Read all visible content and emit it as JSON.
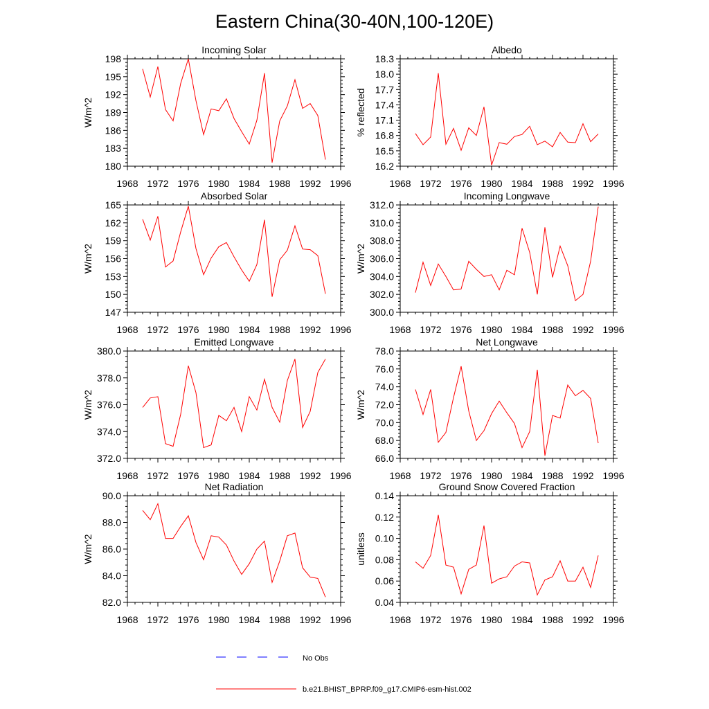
{
  "title": "Eastern China(30-40N,100-120E)",
  "colors": {
    "model": "#ff0000",
    "obs": "#0000ff",
    "axis": "#000000"
  },
  "legend": {
    "obs_label": "No Obs",
    "model_label": "b.e21.BHIST_BPRP.f09_g17.CMIP6-esm-hist.002"
  },
  "chart_data": [
    {
      "type": "line",
      "title": "Incoming Solar",
      "ylabel": "W/m^2",
      "xlabel": "",
      "xlim": [
        1968,
        1996
      ],
      "xticks": [
        1968,
        1972,
        1976,
        1980,
        1984,
        1988,
        1992,
        1996
      ],
      "ylim": [
        180,
        198
      ],
      "yticks": [
        180,
        183,
        186,
        189,
        192,
        195,
        198
      ],
      "ytick_labels": [
        "180",
        "183",
        "186",
        "189",
        "192",
        "195",
        "198"
      ],
      "series": [
        {
          "name": "b.e21.BHIST_BPRP.f09_g17.CMIP6-esm-hist.002",
          "x": [
            1970,
            1971,
            1972,
            1973,
            1974,
            1975,
            1976,
            1977,
            1978,
            1979,
            1980,
            1981,
            1982,
            1983,
            1984,
            1985,
            1986,
            1987,
            1988,
            1989,
            1990,
            1991,
            1992,
            1993,
            1994
          ],
          "y": [
            196.3,
            191.6,
            196.7,
            189.5,
            187.6,
            193.9,
            198.0,
            191.0,
            185.3,
            189.6,
            189.3,
            191.3,
            188.0,
            185.8,
            183.7,
            187.7,
            195.6,
            180.6,
            187.6,
            190.1,
            194.5,
            189.7,
            190.5,
            188.5,
            181.1
          ]
        }
      ]
    },
    {
      "type": "line",
      "title": "Albedo",
      "ylabel": "% reflected",
      "xlabel": "",
      "xlim": [
        1968,
        1996
      ],
      "xticks": [
        1968,
        1972,
        1976,
        1980,
        1984,
        1988,
        1992,
        1996
      ],
      "ylim": [
        16.2,
        18.3
      ],
      "yticks": [
        16.2,
        16.5,
        16.8,
        17.1,
        17.4,
        17.7,
        18.0,
        18.3
      ],
      "ytick_labels": [
        "16.2",
        "16.5",
        "16.8",
        "17.1",
        "17.4",
        "17.7",
        "18.0",
        "18.3"
      ],
      "series": [
        {
          "name": "b.e21.BHIST_BPRP.f09_g17.CMIP6-esm-hist.002",
          "x": [
            1970,
            1971,
            1972,
            1973,
            1974,
            1975,
            1976,
            1977,
            1978,
            1979,
            1980,
            1981,
            1982,
            1983,
            1984,
            1985,
            1986,
            1987,
            1988,
            1989,
            1990,
            1991,
            1992,
            1993,
            1994
          ],
          "y": [
            16.84,
            16.62,
            16.77,
            18.02,
            16.63,
            16.94,
            16.51,
            16.95,
            16.8,
            17.36,
            16.22,
            16.66,
            16.63,
            16.78,
            16.82,
            16.98,
            16.62,
            16.69,
            16.58,
            16.86,
            16.67,
            16.66,
            17.03,
            16.68,
            16.83
          ]
        }
      ]
    },
    {
      "type": "line",
      "title": "Absorbed Solar",
      "ylabel": "W/m^2",
      "xlabel": "",
      "xlim": [
        1968,
        1996
      ],
      "xticks": [
        1968,
        1972,
        1976,
        1980,
        1984,
        1988,
        1992,
        1996
      ],
      "ylim": [
        147,
        165
      ],
      "yticks": [
        147,
        150,
        153,
        156,
        159,
        162,
        165
      ],
      "ytick_labels": [
        "147",
        "150",
        "153",
        "156",
        "159",
        "162",
        "165"
      ],
      "series": [
        {
          "name": "b.e21.BHIST_BPRP.f09_g17.CMIP6-esm-hist.002",
          "x": [
            1970,
            1971,
            1972,
            1973,
            1974,
            1975,
            1976,
            1977,
            1978,
            1979,
            1980,
            1981,
            1982,
            1983,
            1984,
            1985,
            1986,
            1987,
            1988,
            1989,
            1990,
            1991,
            1992,
            1993,
            1994
          ],
          "y": [
            162.6,
            159.1,
            163.1,
            154.6,
            155.6,
            160.5,
            164.8,
            157.7,
            153.3,
            156.1,
            158.0,
            158.7,
            156.3,
            154.1,
            152.2,
            155.0,
            162.5,
            149.6,
            155.8,
            157.4,
            161.5,
            157.6,
            157.5,
            156.5,
            150.1
          ]
        }
      ]
    },
    {
      "type": "line",
      "title": "Incoming Longwave",
      "ylabel": "W/m^2",
      "xlabel": "",
      "xlim": [
        1968,
        1996
      ],
      "xticks": [
        1968,
        1972,
        1976,
        1980,
        1984,
        1988,
        1992,
        1996
      ],
      "ylim": [
        300,
        312
      ],
      "yticks": [
        300,
        302,
        304,
        306,
        308,
        310,
        312
      ],
      "ytick_labels": [
        "300.0",
        "302.0",
        "304.0",
        "306.0",
        "308.0",
        "310.0",
        "312.0"
      ],
      "series": [
        {
          "name": "b.e21.BHIST_BPRP.f09_g17.CMIP6-esm-hist.002",
          "x": [
            1970,
            1971,
            1972,
            1973,
            1974,
            1975,
            1976,
            1977,
            1978,
            1979,
            1980,
            1981,
            1982,
            1983,
            1984,
            1985,
            1986,
            1987,
            1988,
            1989,
            1990,
            1991,
            1992,
            1993,
            1994
          ],
          "y": [
            302.2,
            305.6,
            303.0,
            305.4,
            304.0,
            302.5,
            302.6,
            305.7,
            304.8,
            304.0,
            304.2,
            302.5,
            304.7,
            304.2,
            309.4,
            306.7,
            302.0,
            309.5,
            303.9,
            307.4,
            305.2,
            301.3,
            302.0,
            305.7,
            311.8
          ]
        }
      ]
    },
    {
      "type": "line",
      "title": "Emitted Longwave",
      "ylabel": "W/m^2",
      "xlabel": "",
      "xlim": [
        1968,
        1996
      ],
      "xticks": [
        1968,
        1972,
        1976,
        1980,
        1984,
        1988,
        1992,
        1996
      ],
      "ylim": [
        372,
        380
      ],
      "yticks": [
        372,
        374,
        376,
        378,
        380
      ],
      "ytick_labels": [
        "372.0",
        "374.0",
        "376.0",
        "378.0",
        "380.0"
      ],
      "series": [
        {
          "name": "b.e21.BHIST_BPRP.f09_g17.CMIP6-esm-hist.002",
          "x": [
            1970,
            1971,
            1972,
            1973,
            1974,
            1975,
            1976,
            1977,
            1978,
            1979,
            1980,
            1981,
            1982,
            1983,
            1984,
            1985,
            1986,
            1987,
            1988,
            1989,
            1990,
            1991,
            1992,
            1993,
            1994
          ],
          "y": [
            375.8,
            376.5,
            376.6,
            373.1,
            372.9,
            375.3,
            378.9,
            376.9,
            372.8,
            373.0,
            375.2,
            374.8,
            375.8,
            374.0,
            376.6,
            375.6,
            377.9,
            375.8,
            374.7,
            377.8,
            379.4,
            374.3,
            375.5,
            378.4,
            379.4
          ]
        }
      ]
    },
    {
      "type": "line",
      "title": "Net Longwave",
      "ylabel": "W/m^2",
      "xlabel": "",
      "xlim": [
        1968,
        1996
      ],
      "xticks": [
        1968,
        1972,
        1976,
        1980,
        1984,
        1988,
        1992,
        1996
      ],
      "ylim": [
        66,
        78
      ],
      "yticks": [
        66,
        68,
        70,
        72,
        74,
        76,
        78
      ],
      "ytick_labels": [
        "66.0",
        "68.0",
        "70.0",
        "72.0",
        "74.0",
        "76.0",
        "78.0"
      ],
      "series": [
        {
          "name": "b.e21.BHIST_BPRP.f09_g17.CMIP6-esm-hist.002",
          "x": [
            1970,
            1971,
            1972,
            1973,
            1974,
            1975,
            1976,
            1977,
            1978,
            1979,
            1980,
            1981,
            1982,
            1983,
            1984,
            1985,
            1986,
            1987,
            1988,
            1989,
            1990,
            1991,
            1992,
            1993,
            1994
          ],
          "y": [
            73.7,
            70.9,
            73.7,
            67.8,
            68.9,
            72.8,
            76.3,
            71.3,
            68.0,
            69.1,
            71.0,
            72.4,
            71.1,
            69.9,
            67.2,
            69.0,
            75.9,
            66.3,
            70.8,
            70.5,
            74.2,
            73.0,
            73.6,
            72.7,
            67.7
          ]
        }
      ]
    },
    {
      "type": "line",
      "title": "Net Radiation",
      "ylabel": "W/m^2",
      "xlabel": "",
      "xlim": [
        1968,
        1996
      ],
      "xticks": [
        1968,
        1972,
        1976,
        1980,
        1984,
        1988,
        1992,
        1996
      ],
      "ylim": [
        82,
        90
      ],
      "yticks": [
        82,
        84,
        86,
        88,
        90
      ],
      "ytick_labels": [
        "82.0",
        "84.0",
        "86.0",
        "88.0",
        "90.0"
      ],
      "series": [
        {
          "name": "b.e21.BHIST_BPRP.f09_g17.CMIP6-esm-hist.002",
          "x": [
            1970,
            1971,
            1972,
            1973,
            1974,
            1975,
            1976,
            1977,
            1978,
            1979,
            1980,
            1981,
            1982,
            1983,
            1984,
            1985,
            1986,
            1987,
            1988,
            1989,
            1990,
            1991,
            1992,
            1993,
            1994
          ],
          "y": [
            88.9,
            88.2,
            89.4,
            86.8,
            86.8,
            87.7,
            88.5,
            86.5,
            85.2,
            87.0,
            86.9,
            86.3,
            85.1,
            84.1,
            84.9,
            86.0,
            86.6,
            83.5,
            85.1,
            87.0,
            87.2,
            84.6,
            83.9,
            83.8,
            82.4
          ]
        }
      ]
    },
    {
      "type": "line",
      "title": "Ground Snow Covered Fraction",
      "ylabel": "unitless",
      "xlabel": "",
      "xlim": [
        1968,
        1996
      ],
      "xticks": [
        1968,
        1972,
        1976,
        1980,
        1984,
        1988,
        1992,
        1996
      ],
      "ylim": [
        0.04,
        0.14
      ],
      "yticks": [
        0.04,
        0.06,
        0.08,
        0.1,
        0.12,
        0.14
      ],
      "ytick_labels": [
        "0.04",
        "0.06",
        "0.08",
        "0.10",
        "0.12",
        "0.14"
      ],
      "series": [
        {
          "name": "b.e21.BHIST_BPRP.f09_g17.CMIP6-esm-hist.002",
          "x": [
            1970,
            1971,
            1972,
            1973,
            1974,
            1975,
            1976,
            1977,
            1978,
            1979,
            1980,
            1981,
            1982,
            1983,
            1984,
            1985,
            1986,
            1987,
            1988,
            1989,
            1990,
            1991,
            1992,
            1993,
            1994
          ],
          "y": [
            0.078,
            0.072,
            0.084,
            0.122,
            0.075,
            0.073,
            0.048,
            0.071,
            0.075,
            0.112,
            0.058,
            0.062,
            0.064,
            0.074,
            0.078,
            0.077,
            0.047,
            0.061,
            0.064,
            0.079,
            0.06,
            0.06,
            0.073,
            0.054,
            0.084
          ]
        }
      ]
    }
  ]
}
